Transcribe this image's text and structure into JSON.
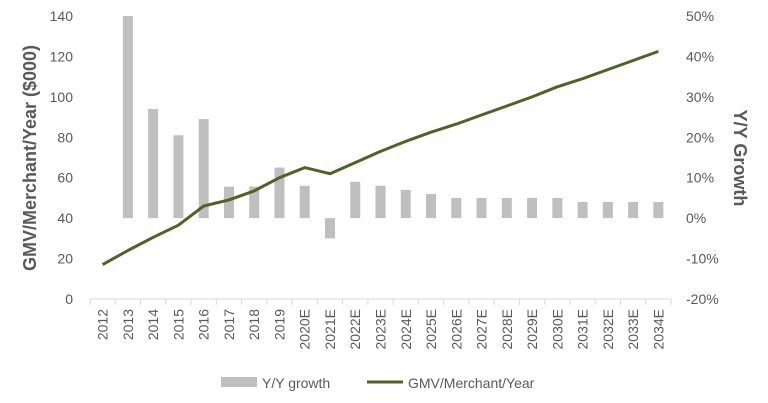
{
  "chart_data": {
    "type": "bar+line",
    "categories": [
      "2012",
      "2013",
      "2014",
      "2015",
      "2016",
      "2017",
      "2018",
      "2019",
      "2020E",
      "2021E",
      "2022E",
      "2023E",
      "2024E",
      "2025E",
      "2026E",
      "2027E",
      "2028E",
      "2029E",
      "2030E",
      "2031E",
      "2032E",
      "2033E",
      "2034E"
    ],
    "series": [
      {
        "name": "Y/Y growth",
        "type": "bar",
        "axis": "right",
        "values": [
          null,
          0.5,
          0.27,
          0.205,
          0.245,
          0.078,
          0.078,
          0.125,
          0.08,
          -0.05,
          0.09,
          0.08,
          0.07,
          0.06,
          0.05,
          0.05,
          0.05,
          0.05,
          0.05,
          0.04,
          0.04,
          0.04,
          0.04
        ]
      },
      {
        "name": "GMV/Merchant/Year",
        "type": "line",
        "axis": "left",
        "values": [
          17,
          24,
          30.5,
          36.5,
          46,
          49,
          53.5,
          60,
          65,
          62,
          67.5,
          73,
          78,
          82.5,
          86.5,
          91,
          95.5,
          100,
          105,
          109,
          113.5,
          118,
          122.5
        ]
      }
    ],
    "ylabel": "GMV/Merchant/Year ($000)",
    "y2label": "Y/Y Growth",
    "ylim": [
      0,
      140
    ],
    "y2lim": [
      -0.2,
      0.5
    ],
    "yticks": [
      "0",
      "20",
      "40",
      "60",
      "80",
      "100",
      "120",
      "140"
    ],
    "y2ticks": [
      "-20%",
      "-10%",
      "0%",
      "10%",
      "20%",
      "30%",
      "40%",
      "50%"
    ],
    "grid": false,
    "legend_position": "bottom",
    "colors": {
      "bar": "#bfbfbf",
      "line": "#4f6228",
      "axis": "#d9d9d9",
      "text": "#595959"
    }
  }
}
